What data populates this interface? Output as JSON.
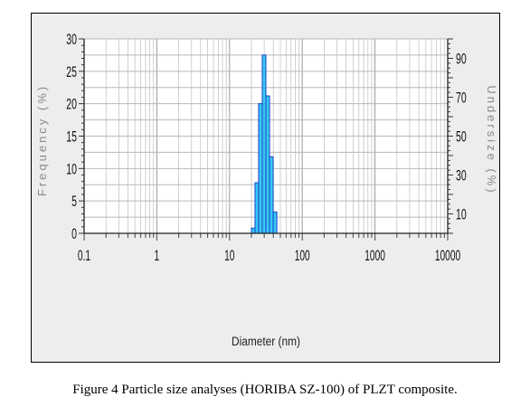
{
  "chart_data": {
    "type": "bar",
    "xlabel": "Diameter (nm)",
    "ylabel_left": "Frequency (%)",
    "ylabel_right": "Undersize (%)",
    "x_scale": "log",
    "xlim": [
      0.1,
      10000
    ],
    "x_tick_labels": [
      "0.1",
      "1",
      "10",
      "100",
      "1000",
      "10000"
    ],
    "x_tick_values": [
      0.1,
      1,
      10,
      100,
      1000,
      10000
    ],
    "ylim_left": [
      0,
      30
    ],
    "y_left_tick_labels": [
      "0",
      "5",
      "10",
      "15",
      "20",
      "25",
      "30"
    ],
    "y_left_tick_values": [
      0,
      5,
      10,
      15,
      20,
      25,
      30
    ],
    "ylim_right": [
      0,
      100
    ],
    "y_right_tick_labels": [
      "10",
      "30",
      "50",
      "70",
      "90"
    ],
    "y_right_tick_values": [
      10,
      30,
      50,
      70,
      90
    ],
    "grid": true,
    "bar_color": "#38c9f0",
    "bars": [
      {
        "x_start": 20.0,
        "x_end": 22.4,
        "value": 0.8
      },
      {
        "x_start": 22.4,
        "x_end": 25.1,
        "value": 7.8
      },
      {
        "x_start": 25.1,
        "x_end": 28.2,
        "value": 20.0
      },
      {
        "x_start": 28.2,
        "x_end": 31.6,
        "value": 27.5
      },
      {
        "x_start": 31.6,
        "x_end": 35.5,
        "value": 21.2
      },
      {
        "x_start": 35.5,
        "x_end": 39.8,
        "value": 11.8
      },
      {
        "x_start": 39.8,
        "x_end": 44.7,
        "value": 3.3
      }
    ]
  },
  "caption": "Figure 4 Particle size analyses (HORIBA SZ-100) of PLZT composite."
}
